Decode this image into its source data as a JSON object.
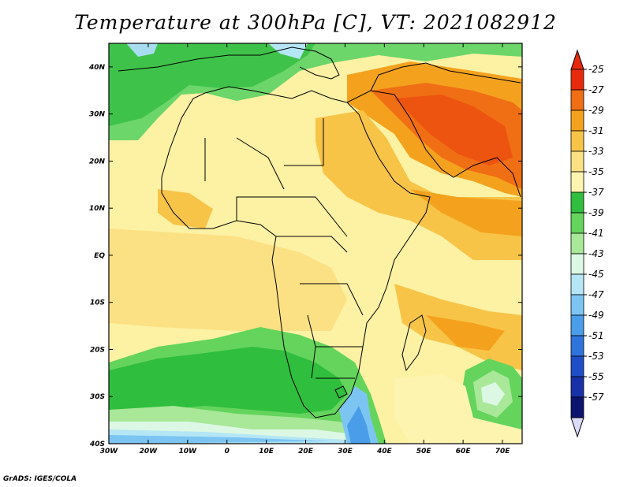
{
  "title": "Temperature at 300hPa [C], VT: 2021082912",
  "credit": "GrADS: IGES/COLA",
  "map": {
    "lon_labels": [
      "30W",
      "20W",
      "10W",
      "0",
      "10E",
      "20E",
      "30E",
      "40E",
      "50E",
      "60E",
      "70E"
    ],
    "lat_labels": [
      "40N",
      "30N",
      "20N",
      "10N",
      "EQ",
      "10S",
      "20S",
      "30S",
      "40S"
    ],
    "lon_values": [
      -30,
      -20,
      -10,
      0,
      10,
      20,
      30,
      40,
      50,
      60,
      70
    ],
    "lat_values": [
      40,
      30,
      20,
      10,
      0,
      -10,
      -20,
      -30,
      -40
    ]
  },
  "colorbar": {
    "labels": [
      "-25",
      "-27",
      "-29",
      "-31",
      "-33",
      "-35",
      "-37",
      "-39",
      "-41",
      "-43",
      "-45",
      "-47",
      "-49",
      "-51",
      "-53",
      "-55",
      "-57"
    ],
    "colors": [
      "#e82a0c",
      "#f06e14",
      "#f4a21e",
      "#f7c448",
      "#fbe184",
      "#fdf4b0",
      "#2fbe3d",
      "#64d45c",
      "#a8e898",
      "#dcf8e4",
      "#b4e6f5",
      "#7cc5f2",
      "#4a9de8",
      "#2e74dc",
      "#1e4fc8",
      "#1830a8",
      "#0c1470"
    ],
    "top_arrow_color": "#e82a0c",
    "bottom_arrow_color": "#dcdcf8"
  }
}
